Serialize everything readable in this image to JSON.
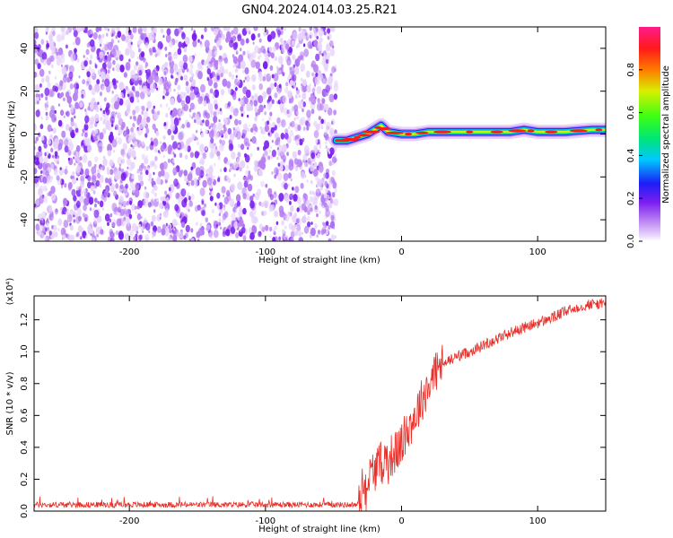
{
  "title": "GN04.2024.014.03.25.R21",
  "colors": {
    "snr_line": "#e8302a",
    "colormap": [
      "#ffffff",
      "#e6d2fb",
      "#b77ef2",
      "#7b1ff0",
      "#1d1df5",
      "#00c8ff",
      "#00e676",
      "#39ff14",
      "#d8f000",
      "#ff7a00",
      "#ff1a1a",
      "#ff1a8c"
    ]
  },
  "chart_data": [
    {
      "type": "heatmap",
      "xlabel": "Height of straight line (km)",
      "ylabel": "Frequency (Hz)",
      "xlim": [
        -270,
        150
      ],
      "ylim": [
        -50,
        50
      ],
      "x_ticks": [
        -200,
        -100,
        0,
        100
      ],
      "x_tick_labels": [
        "-200",
        "-100",
        "0",
        "100"
      ],
      "y_ticks": [
        -40,
        -20,
        0,
        20,
        40
      ],
      "y_tick_labels": [
        "-40",
        "-20",
        "0",
        "20",
        "40"
      ],
      "noise_region_x": [
        -270,
        -48
      ],
      "signal_ridge": {
        "x": [
          -48,
          -45,
          -40,
          -35,
          -30,
          -25,
          -20,
          -15,
          -10,
          0,
          10,
          20,
          40,
          60,
          80,
          90,
          100,
          120,
          140,
          150
        ],
        "frequency": [
          -3,
          -3,
          -3,
          -2,
          -1,
          0,
          2,
          4,
          1,
          0,
          0,
          1,
          1,
          1,
          1,
          2,
          1,
          1,
          2,
          2
        ]
      },
      "colorbar": {
        "label": "Normalized spectral amplitude",
        "range": [
          0,
          1
        ],
        "ticks": [
          0.0,
          0.2,
          0.4,
          0.6,
          0.8
        ],
        "tick_labels": [
          "0.0",
          "0.2",
          "0.4",
          "0.6",
          "0.8"
        ]
      }
    },
    {
      "type": "line",
      "xlabel": "Height of straight line (km)",
      "ylabel": "SNR (10 * v/v)",
      "y_multiplier_label": "(x10⁴)",
      "xlim": [
        -270,
        150
      ],
      "ylim": [
        0,
        1.35
      ],
      "x_ticks": [
        -200,
        -100,
        0,
        100
      ],
      "x_tick_labels": [
        "-200",
        "-100",
        "0",
        "100"
      ],
      "y_ticks": [
        0,
        0.2,
        0.4,
        0.6,
        0.8,
        1.0,
        1.2
      ],
      "y_tick_labels": [
        "0.0",
        "0.2",
        "0.4",
        "0.6",
        "0.8",
        "1.0",
        "1.2"
      ],
      "series": [
        {
          "x": [
            -270,
            -200,
            -100,
            -32,
            -30,
            -25,
            -20,
            -15,
            -10,
            -5,
            0,
            5,
            10,
            15,
            20,
            25,
            30,
            40,
            50,
            60,
            70,
            80,
            90,
            100,
            110,
            120,
            130,
            140,
            150
          ],
          "values": [
            0.04,
            0.04,
            0.04,
            0.04,
            0.12,
            0.2,
            0.26,
            0.3,
            0.34,
            0.36,
            0.42,
            0.52,
            0.6,
            0.7,
            0.8,
            0.88,
            0.92,
            0.97,
            1.0,
            1.04,
            1.08,
            1.12,
            1.15,
            1.18,
            1.21,
            1.25,
            1.28,
            1.3,
            1.3
          ]
        }
      ]
    }
  ]
}
